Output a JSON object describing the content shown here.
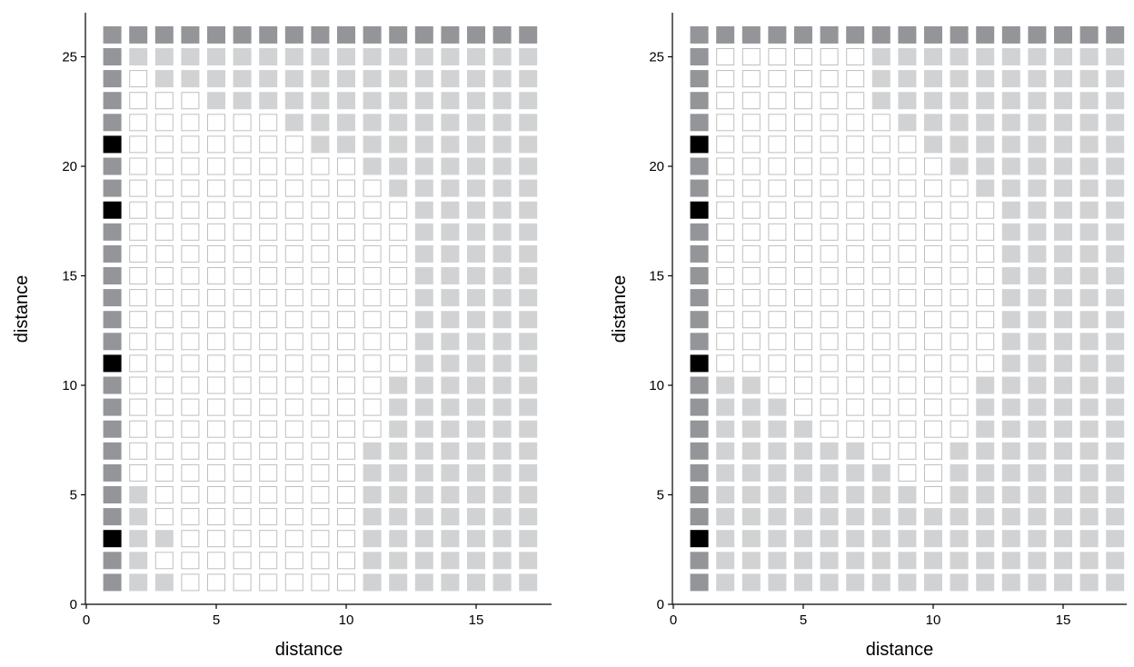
{
  "chart_data": [
    {
      "type": "heatmap",
      "title": "",
      "xlabel": "distance",
      "ylabel": "distance",
      "xlim": [
        0,
        17.9
      ],
      "ylim": [
        0,
        27.2
      ],
      "xticks": [
        0,
        5,
        10,
        15
      ],
      "yticks": [
        0,
        5,
        10,
        15,
        20,
        25
      ],
      "grid": false,
      "cell_legend": {
        "0": "empty (white)",
        "1": "light gray",
        "2": "dark gray (border)",
        "3": "black"
      },
      "rows_from_top": [
        "22222222222222222",
        "21111111111111111",
        "20111111111111111",
        "20001111111111111",
        "20000001111111111",
        "30000000111111111",
        "20000000001111111",
        "20000000000111111",
        "30000000000011111",
        "20000000000011111",
        "20000000000011111",
        "20000000000011111",
        "20000000000011111",
        "20000000000011111",
        "20000000000011111",
        "30000000000011111",
        "20000000000111111",
        "20000000000111111",
        "20000000000111111",
        "20000000001111111",
        "20000000001111111",
        "21000000001111111",
        "21000000001111111",
        "31100000001111111",
        "21000000001111111",
        "21100000001111111"
      ]
    },
    {
      "type": "heatmap",
      "title": "",
      "xlabel": "distance",
      "ylabel": "distance",
      "xlim": [
        0,
        17.9
      ],
      "ylim": [
        0,
        27.2
      ],
      "xticks": [
        0,
        5,
        10,
        15
      ],
      "yticks": [
        0,
        5,
        10,
        15,
        20,
        25
      ],
      "grid": false,
      "cell_legend": {
        "0": "empty (white)",
        "1": "light gray",
        "2": "dark gray (border)",
        "3": "black"
      },
      "rows_from_top": [
        "22222222222222222",
        "20000001111111111",
        "20000001111111111",
        "20000001111111111",
        "20000000111111111",
        "30000000011111111",
        "20000000001111111",
        "20000000000111111",
        "30000000000011111",
        "20000000000011111",
        "20000000000011111",
        "20000000000011111",
        "20000000000011111",
        "20000000000011111",
        "20000000000011111",
        "30000000000011111",
        "21100000000111111",
        "21110000000111111",
        "21111000000111111",
        "21111110001111111",
        "21111111001111111",
        "21111111101111111",
        "21111111111111111",
        "31111111111111111",
        "21111111111111111",
        "21111111111111111"
      ]
    }
  ],
  "colors": {
    "empty_fill": "#ffffff",
    "empty_stroke": "#bfbfbf",
    "light": "#d1d2d4",
    "dark": "#939598",
    "black": "#000000",
    "axis": "#000000"
  }
}
